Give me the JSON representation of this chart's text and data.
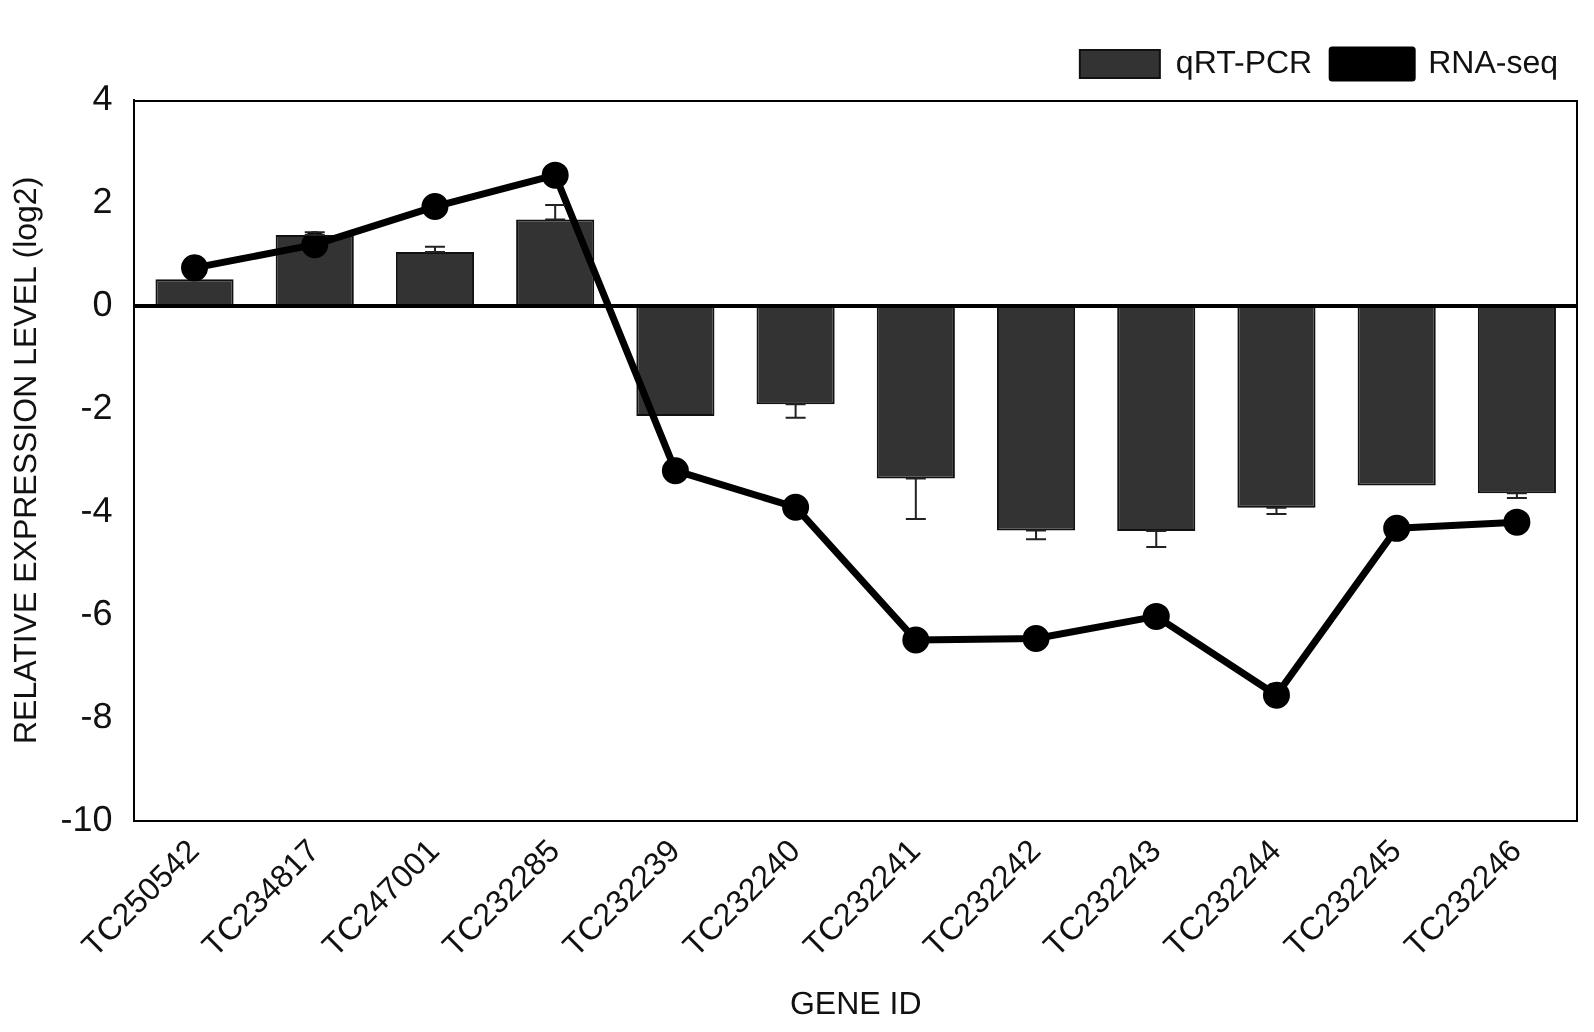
{
  "chart_data": {
    "type": "bar",
    "xlabel": "GENE ID",
    "ylabel": "RELATIVE EXPRESSION LEVEL (log2)",
    "categories": [
      "TC250542",
      "TC234817",
      "TC247001",
      "TC232285",
      "TC232239",
      "TC232240",
      "TC232241",
      "TC232242",
      "TC232243",
      "TC232244",
      "TC232245",
      "TC232246"
    ],
    "series": [
      {
        "name": "qRT-PCR",
        "color": "#333333",
        "values": [
          0.52,
          1.38,
          1.05,
          1.68,
          -2.14,
          -1.91,
          -3.35,
          -4.36,
          -4.37,
          -3.92,
          -3.49,
          -3.64
        ],
        "errors": [
          null,
          [
            1.38,
            1.43
          ],
          [
            1.05,
            1.15
          ],
          [
            1.68,
            1.96
          ],
          null,
          [
            -2.17,
            -1.91
          ],
          [
            -4.14,
            -3.35
          ],
          [
            -4.53,
            -4.36
          ],
          [
            -4.68,
            -4.37
          ],
          [
            -4.04,
            -3.92
          ],
          null,
          [
            -3.73,
            -3.64
          ]
        ]
      },
      {
        "name": "RNA-seq",
        "type": "line",
        "color": "#000000",
        "values": [
          0.74,
          1.19,
          1.93,
          2.54,
          -3.2,
          -3.91,
          -6.49,
          -6.46,
          -6.03,
          -7.56,
          -4.32,
          -4.2
        ]
      }
    ],
    "ylim": [
      -10,
      4
    ],
    "yticks": [
      -10,
      -8,
      -6,
      -4,
      -2,
      0,
      2,
      4
    ],
    "grid": false,
    "legend": "top right",
    "marker": "circle",
    "line_style": "solid"
  }
}
